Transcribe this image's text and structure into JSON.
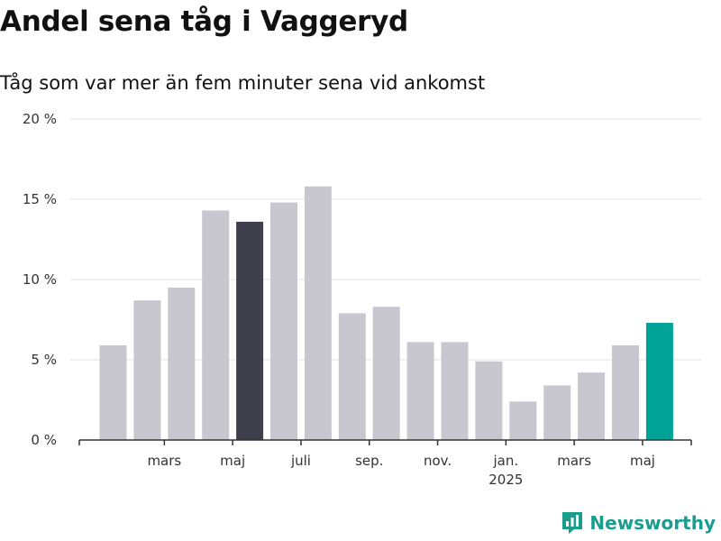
{
  "title": "Andel sena tåg i Vaggeryd",
  "subtitle": "Tåg som var mer än fem minuter sena vid ankomst",
  "brand": "Newsworthy",
  "colors": {
    "bar_default": "#c8c7cf",
    "bar_highlight_dark": "#403f4c",
    "bar_highlight_accent": "#00a398",
    "grid": "#e3e3e3",
    "axis": "#333333",
    "brand": "#1a9c8e"
  },
  "chart_data": {
    "type": "bar",
    "title": "Andel sena tåg i Vaggeryd",
    "subtitle": "Tåg som var mer än fem minuter sena vid ankomst",
    "xlabel": "",
    "ylabel": "",
    "ylim": [
      0,
      20
    ],
    "yticks": [
      {
        "value": 0,
        "label": "0 %"
      },
      {
        "value": 5,
        "label": "5 %"
      },
      {
        "value": 10,
        "label": "10 %"
      },
      {
        "value": 15,
        "label": "15 %"
      },
      {
        "value": 20,
        "label": "20 %"
      }
    ],
    "x_tick_labels": [
      "mars",
      "maj",
      "juli",
      "sep.",
      "nov.",
      "jan.",
      "mars",
      "maj"
    ],
    "x_tick_sublabels": [
      "",
      "",
      "",
      "",
      "",
      "2025",
      "",
      ""
    ],
    "x_tick_bar_index": [
      1.5,
      3.5,
      5.5,
      7.5,
      9.5,
      11.5,
      13.5,
      15.5
    ],
    "values": [
      5.9,
      8.7,
      9.5,
      14.3,
      13.6,
      14.8,
      15.8,
      7.9,
      8.3,
      6.1,
      6.1,
      4.9,
      2.4,
      3.4,
      4.2,
      5.9,
      7.3
    ],
    "highlight": {
      "4": "dark",
      "16": "accent"
    },
    "grid": true,
    "legend": "none"
  }
}
